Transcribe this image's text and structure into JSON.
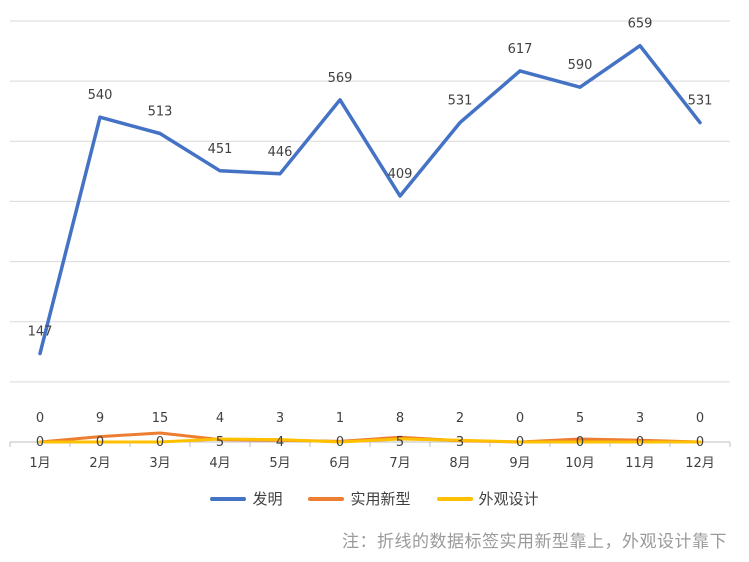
{
  "chart_data": {
    "type": "line",
    "categories": [
      "1月",
      "2月",
      "3月",
      "4月",
      "5月",
      "6月",
      "7月",
      "8月",
      "9月",
      "10月",
      "11月",
      "12月"
    ],
    "series": [
      {
        "name": "发明",
        "color": "#4472c4",
        "values": [
          147,
          540,
          513,
          451,
          446,
          569,
          409,
          531,
          617,
          590,
          659,
          531
        ],
        "label_position": "above"
      },
      {
        "name": "实用新型",
        "color": "#ed7d31",
        "values": [
          0,
          9,
          15,
          4,
          3,
          1,
          8,
          2,
          0,
          5,
          3,
          0
        ],
        "label_position": "above"
      },
      {
        "name": "外观设计",
        "color": "#ffc000",
        "values": [
          0,
          0,
          0,
          5,
          4,
          0,
          5,
          3,
          0,
          0,
          0,
          0
        ],
        "label_position": "below"
      }
    ],
    "ylim": [
      0,
      700
    ],
    "grid": true,
    "legend_position": "bottom"
  },
  "note": "注：折线的数据标签实用新型靠上，外观设计靠下"
}
